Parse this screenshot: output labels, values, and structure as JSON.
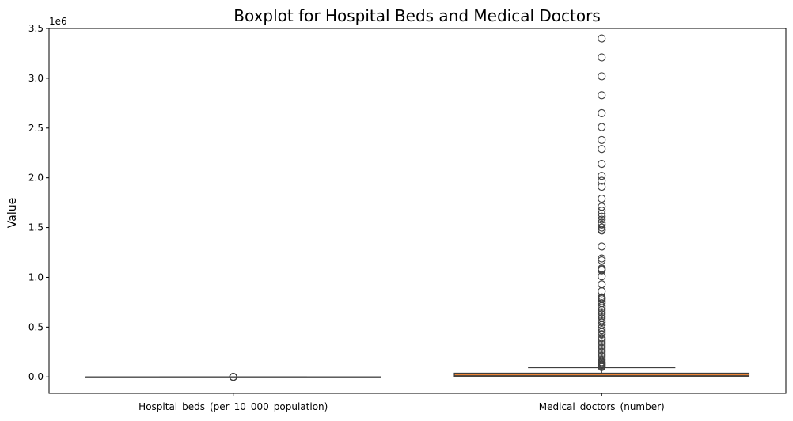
{
  "chart_data": {
    "type": "box",
    "title": "Boxplot for Hospital Beds and Medical Doctors",
    "xlabel": "",
    "ylabel": "Value",
    "y_offset_label": "1e6",
    "ylim": [
      -0.165,
      3.5
    ],
    "yticks": [
      0.0,
      0.5,
      1.0,
      1.5,
      2.0,
      2.5,
      3.0,
      3.5
    ],
    "ytick_labels": [
      "0.0",
      "0.5",
      "1.0",
      "1.5",
      "2.0",
      "2.5",
      "3.0",
      "3.5"
    ],
    "y_units": "1e6",
    "grid": false,
    "categories": [
      "Hospital_beds_(per_10_000_population)",
      "Medical_doctors_(number)"
    ],
    "boxes": [
      {
        "category": "Hospital_beds_(per_10_000_population)",
        "color": "#3b75af",
        "whisker_low": 0.0,
        "q1": 0.0,
        "median": 0.0,
        "q3": 5e-05,
        "whisker_high": 0.0001,
        "outliers": [
          0.0002,
          0.00025,
          0.0003,
          0.0004,
          0.0005,
          0.0006
        ]
      },
      {
        "category": "Medical_doctors_(number)",
        "color": "#ef8636",
        "whisker_low": 0.0,
        "q1": 0.003,
        "median": 0.012,
        "q3": 0.038,
        "whisker_high": 0.093,
        "outliers": [
          3.4,
          3.21,
          3.02,
          2.83,
          2.65,
          2.51,
          2.38,
          2.29,
          2.14,
          2.02,
          1.97,
          1.91,
          1.79,
          1.71,
          1.67,
          1.64,
          1.61,
          1.58,
          1.55,
          1.53,
          1.5,
          1.48,
          1.47,
          1.31,
          1.19,
          1.17,
          1.09,
          1.08,
          1.07,
          1.01,
          0.93,
          0.86,
          0.8,
          0.79,
          0.78,
          0.76,
          0.74,
          0.71,
          0.69,
          0.67,
          0.65,
          0.63,
          0.61,
          0.59,
          0.57,
          0.55,
          0.52,
          0.49,
          0.47,
          0.45,
          0.43,
          0.39,
          0.37,
          0.35,
          0.33,
          0.31,
          0.29,
          0.27,
          0.25,
          0.23,
          0.21,
          0.19,
          0.17,
          0.15,
          0.14,
          0.13,
          0.12,
          0.11,
          0.1
        ]
      }
    ]
  }
}
